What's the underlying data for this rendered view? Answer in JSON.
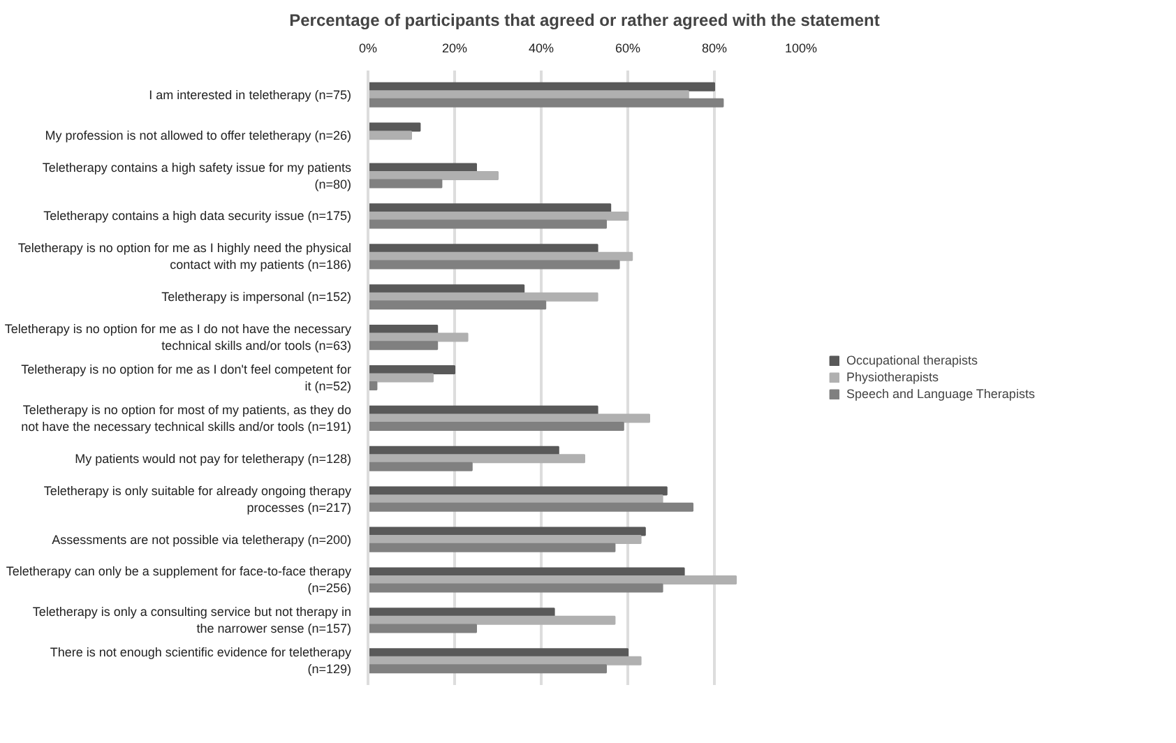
{
  "chart_data": {
    "type": "bar",
    "orientation": "horizontal",
    "title": "Percentage of participants that agreed or rather agreed with the statement",
    "categories": [
      "I am interested in teletherapy (n=75)",
      "My profession is not allowed to offer teletherapy (n=26)",
      "Teletherapy contains a high safety issue for my patients (n=80)",
      "Teletherapy contains a high data security issue (n=175)",
      "Teletherapy is no option for me as I highly need the physical contact with my patients (n=186)",
      "Teletherapy is impersonal (n=152)",
      "Teletherapy is no option for me as I do not have the necessary technical skills and/or tools (n=63)",
      "Teletherapy is no option for me as I don't feel competent for it (n=52)",
      "Teletherapy is no option for most of my patients, as they do not have the necessary technical skills and/or tools (n=191)",
      "My patients would not pay for teletherapy (n=128)",
      "Teletherapy is only suitable for already ongoing therapy processes (n=217)",
      "Assessments are not possible via teletherapy (n=200)",
      "Teletherapy can only be a supplement for face-to-face therapy (n=256)",
      "Teletherapy is only a consulting service but not therapy in the narrower sense (n=157)",
      "There is not enough scientific evidence for teletherapy (n=129)"
    ],
    "series": [
      {
        "name": "Occupational therapists",
        "color": "#595959",
        "values": [
          80,
          12,
          25,
          56,
          53,
          36,
          16,
          20,
          53,
          44,
          69,
          64,
          73,
          43,
          60
        ]
      },
      {
        "name": "Physiotherapists",
        "color": "#b0b0b0",
        "values": [
          74,
          10,
          30,
          60,
          61,
          53,
          23,
          15,
          65,
          50,
          68,
          63,
          85,
          57,
          63
        ]
      },
      {
        "name": "Speech and Language Therapists",
        "color": "#808080",
        "values": [
          82,
          0,
          17,
          55,
          58,
          41,
          16,
          2,
          59,
          24,
          75,
          57,
          68,
          25,
          55
        ]
      }
    ],
    "xlim": [
      0,
      100
    ],
    "xticks": [
      {
        "value": 0,
        "label": "0%"
      },
      {
        "value": 20,
        "label": "20%"
      },
      {
        "value": 40,
        "label": "40%"
      },
      {
        "value": 60,
        "label": "60%"
      },
      {
        "value": 80,
        "label": "80%"
      },
      {
        "value": 100,
        "label": "100%"
      }
    ],
    "grid": "x",
    "legend": "right"
  }
}
